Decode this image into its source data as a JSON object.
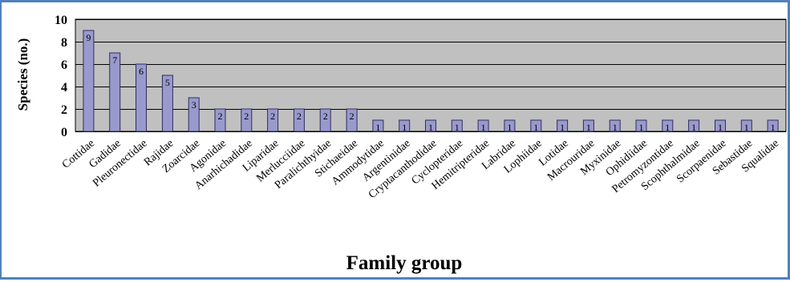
{
  "chart_data": {
    "type": "bar",
    "title": "",
    "xlabel": "Family group",
    "ylabel": "Species (no.)",
    "ylim": [
      0,
      10
    ],
    "yticks": [
      0,
      2,
      4,
      6,
      8,
      10
    ],
    "grid": true,
    "legend": "none",
    "categories": [
      "Cottidae",
      "Gadidae",
      "Pleuronectidae",
      "Rajidae",
      "Zoarcidae",
      "Agonidae",
      "Anarhichadidae",
      "Liparidae",
      "Merlucciidae",
      "Paralichthyidae",
      "Stichaeidae",
      "Ammodytidae",
      "Argentinidae",
      "Cryptacanthodidae",
      "Cyclopteridae",
      "Hemitripteridae",
      "Labridae",
      "Lophiidae",
      "Lotidae",
      "Macrouridae",
      "Myxinidae",
      "Ophidiidae",
      "Petromyzontidae",
      "Scophthalmidae",
      "Scorpaenidae",
      "Sebastidae",
      "Squalidae"
    ],
    "values": [
      9,
      7,
      6,
      5,
      3,
      2,
      2,
      2,
      2,
      2,
      2,
      1,
      1,
      1,
      1,
      1,
      1,
      1,
      1,
      1,
      1,
      1,
      1,
      1,
      1,
      1,
      1
    ],
    "colors": {
      "plot_bg": "#c0c0c0",
      "bar_fill": "#9999cc",
      "bar_stroke": "#2e2e5e",
      "grid": "#000000",
      "frame_border": "#4f81bd"
    }
  }
}
